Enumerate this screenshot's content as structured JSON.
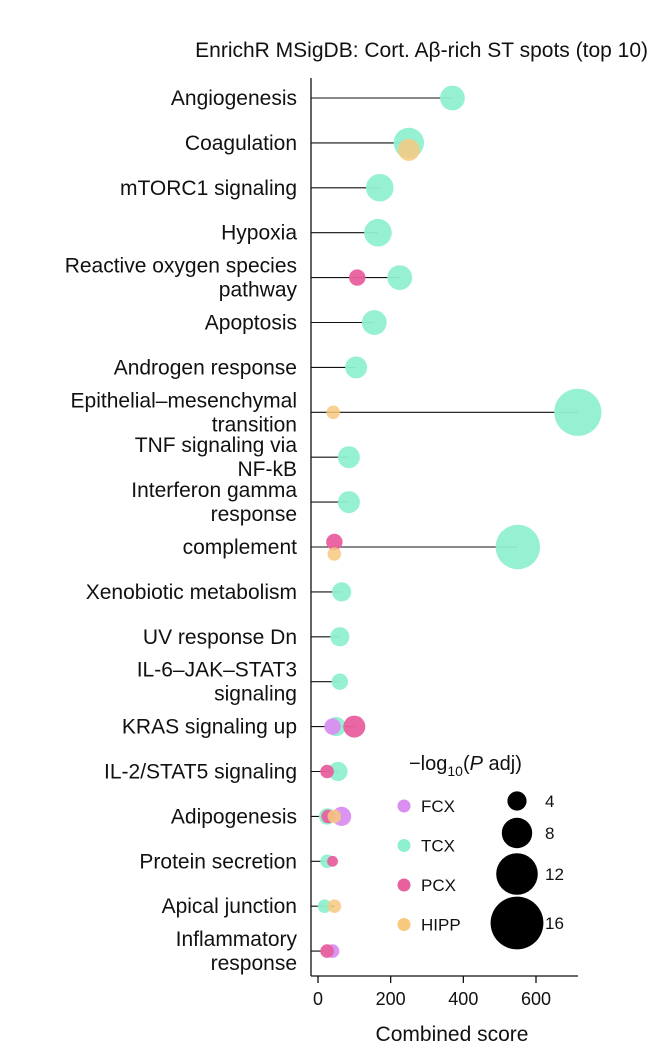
{
  "chart_data": {
    "type": "scatter",
    "title": "EnrichR MSigDB: Cort. Aβ-rich ST spots (top 10)",
    "xlabel": "Combined score",
    "xlim": [
      -5,
      760
    ],
    "xticks": [
      0,
      200,
      400,
      600
    ],
    "categories": [
      [
        "Angiogenesis"
      ],
      [
        "Coagulation"
      ],
      [
        "mTORC1 signaling"
      ],
      [
        "Hypoxia"
      ],
      [
        "Reactive oxygen species",
        "pathway"
      ],
      [
        "Apoptosis"
      ],
      [
        "Androgen response"
      ],
      [
        "Epithelial–mesenchymal",
        "transition"
      ],
      [
        "TNF signaling via",
        "NF-kB"
      ],
      [
        "Interferon gamma",
        "response"
      ],
      [
        "complement"
      ],
      [
        "Xenobiotic metabolism"
      ],
      [
        "UV response Dn"
      ],
      [
        "IL-6–JAK–STAT3",
        "signaling"
      ],
      [
        "KRAS signaling up"
      ],
      [
        "IL-2/STAT5 signaling"
      ],
      [
        "Adipogenesis"
      ],
      [
        "Protein secretion"
      ],
      [
        "Apical junction"
      ],
      [
        "Inflammatory",
        "response"
      ]
    ],
    "series": [
      {
        "name": "FCX",
        "color": "#d98ef0",
        "points": [
          [
            14,
            40,
            3
          ],
          [
            16,
            65,
            4
          ],
          [
            19,
            40,
            2
          ]
        ]
      },
      {
        "name": "TCX",
        "color": "#8ff0cf",
        "points": [
          [
            0,
            370,
            6
          ],
          [
            1,
            250,
            8
          ],
          [
            2,
            170,
            7
          ],
          [
            3,
            165,
            7
          ],
          [
            4,
            225,
            6
          ],
          [
            5,
            155,
            6
          ],
          [
            6,
            105,
            5
          ],
          [
            7,
            715,
            14
          ],
          [
            8,
            85,
            5
          ],
          [
            9,
            85,
            5
          ],
          [
            10,
            550,
            13
          ],
          [
            11,
            65,
            4
          ],
          [
            12,
            60,
            4
          ],
          [
            13,
            60,
            3
          ],
          [
            14,
            50,
            4
          ],
          [
            15,
            55,
            4
          ],
          [
            16,
            25,
            3
          ],
          [
            17,
            25,
            2
          ],
          [
            18,
            18,
            2
          ],
          [
            19,
            30,
            1
          ]
        ]
      },
      {
        "name": "PCX",
        "color": "#e8609e",
        "points": [
          [
            4,
            108,
            3
          ],
          [
            10,
            45,
            3
          ],
          [
            14,
            100,
            5
          ],
          [
            15,
            25,
            2
          ],
          [
            16,
            28,
            2
          ],
          [
            17,
            40,
            1
          ],
          [
            19,
            25,
            2
          ]
        ]
      },
      {
        "name": "HIPP",
        "color": "#f7c97f",
        "points": [
          [
            1,
            250,
            5
          ],
          [
            7,
            42,
            2
          ],
          [
            10,
            45,
            2
          ],
          [
            16,
            45,
            2
          ],
          [
            18,
            45,
            2
          ]
        ]
      }
    ],
    "size_legend": {
      "title_pre": "−log",
      "title_sub": "10",
      "title_p": "P",
      "title_post": " adj)",
      "title_open": "(",
      "values": [
        4,
        8,
        12,
        16
      ]
    },
    "legend_position": "bottom-right"
  }
}
